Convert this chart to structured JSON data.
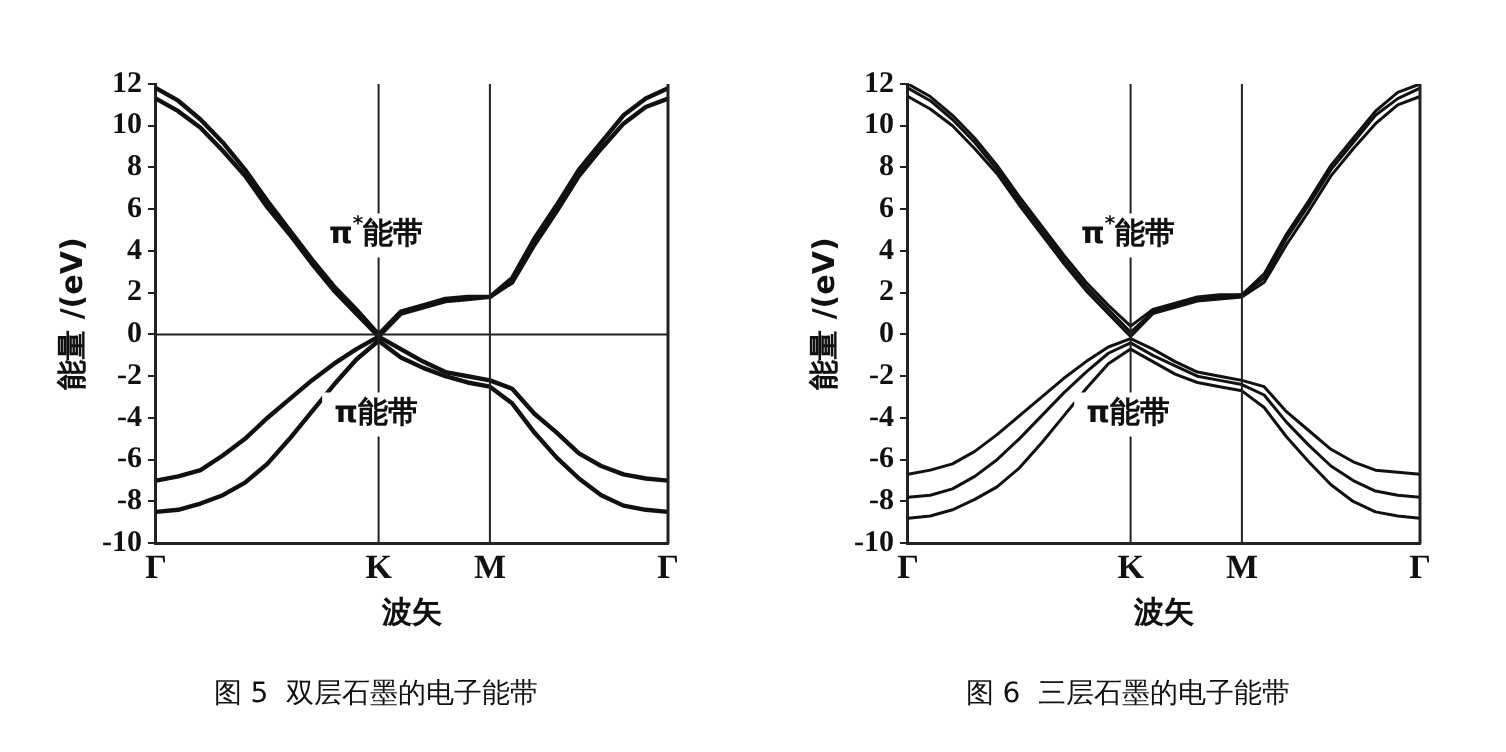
{
  "chart_data": [
    {
      "type": "line",
      "title": "图 5  双层石墨的电子能带",
      "xlabel": "波矢",
      "ylabel": "能量 /(eV)",
      "categories": [
        "Γ",
        null,
        null,
        null,
        null,
        null,
        null,
        null,
        null,
        null,
        "K",
        null,
        null,
        null,
        null,
        "M",
        null,
        null,
        null,
        null,
        null,
        null,
        null,
        "Γ"
      ],
      "series": [
        {
          "color": "#111111",
          "values": [
            11.8,
            11.2,
            10.3,
            9.2,
            7.9,
            6.4,
            5.0,
            3.6,
            2.3,
            1.2,
            0,
            1.1,
            1.4,
            1.7,
            1.8,
            1.8,
            2.7,
            4.6,
            6.2,
            7.9,
            9.2,
            10.5,
            11.3,
            11.8
          ]
        },
        {
          "color": "#111111",
          "values": [
            11.3,
            10.7,
            9.9,
            8.8,
            7.6,
            6.1,
            4.8,
            3.4,
            2.1,
            1.0,
            -0.1,
            1.0,
            1.3,
            1.6,
            1.7,
            1.8,
            2.5,
            4.3,
            5.9,
            7.6,
            8.9,
            10.1,
            10.9,
            11.3
          ]
        },
        {
          "color": "#111111",
          "values": [
            -7.0,
            -6.8,
            -6.5,
            -5.8,
            -5.0,
            -4.0,
            -3.1,
            -2.2,
            -1.4,
            -0.7,
            -0.1,
            -0.7,
            -1.3,
            -1.8,
            -2.0,
            -2.2,
            -2.6,
            -3.8,
            -4.7,
            -5.7,
            -6.3,
            -6.7,
            -6.9,
            -7.0
          ]
        },
        {
          "color": "#111111",
          "values": [
            -8.5,
            -8.4,
            -8.1,
            -7.7,
            -7.1,
            -6.2,
            -5.0,
            -3.7,
            -2.4,
            -1.2,
            -0.3,
            -1.1,
            -1.6,
            -2.0,
            -2.3,
            -2.5,
            -3.3,
            -4.7,
            -5.9,
            -6.9,
            -7.7,
            -8.2,
            -8.4,
            -8.5
          ]
        }
      ],
      "ylim": [
        -10,
        12
      ],
      "yticks": [
        -10,
        -8,
        -6,
        -4,
        -2,
        0,
        2,
        4,
        6,
        8,
        10,
        12
      ],
      "ref_lines": [
        {
          "axis": "x",
          "value": "K"
        },
        {
          "axis": "x",
          "value": "M"
        },
        {
          "axis": "y",
          "value": 0
        }
      ],
      "annotations": [
        "π$^{*}$能带",
        "π能带"
      ]
    },
    {
      "type": "line",
      "title": "图 6  三层石墨的电子能带",
      "xlabel": "波矢",
      "ylabel": "能量 /(eV)",
      "categories": [
        "Γ",
        null,
        null,
        null,
        null,
        null,
        null,
        null,
        null,
        null,
        "K",
        null,
        null,
        null,
        null,
        "M",
        null,
        null,
        null,
        null,
        null,
        null,
        null,
        "Γ"
      ],
      "series": [
        {
          "color": "#111111",
          "values": [
            12.0,
            11.4,
            10.5,
            9.4,
            8.1,
            6.6,
            5.2,
            3.8,
            2.5,
            1.4,
            0.4,
            1.2,
            1.5,
            1.8,
            1.9,
            1.9,
            2.9,
            4.8,
            6.4,
            8.1,
            9.4,
            10.7,
            11.6,
            12.0
          ]
        },
        {
          "color": "#111111",
          "values": [
            11.8,
            11.2,
            10.3,
            9.2,
            7.9,
            6.4,
            5.0,
            3.6,
            2.3,
            1.2,
            0.1,
            1.1,
            1.4,
            1.7,
            1.8,
            1.9,
            2.7,
            4.6,
            6.2,
            7.9,
            9.2,
            10.5,
            11.3,
            11.8
          ]
        },
        {
          "color": "#111111",
          "values": [
            11.4,
            10.8,
            10.0,
            8.9,
            7.7,
            6.2,
            4.8,
            3.4,
            2.1,
            1.0,
            -0.1,
            1.0,
            1.3,
            1.6,
            1.7,
            1.8,
            2.5,
            4.3,
            5.9,
            7.6,
            8.9,
            10.1,
            11.0,
            11.4
          ]
        },
        {
          "color": "#111111",
          "values": [
            -6.7,
            -6.5,
            -6.2,
            -5.6,
            -4.8,
            -3.9,
            -3.0,
            -2.1,
            -1.3,
            -0.6,
            -0.2,
            -0.7,
            -1.3,
            -1.8,
            -2.0,
            -2.2,
            -2.5,
            -3.7,
            -4.6,
            -5.5,
            -6.1,
            -6.5,
            -6.6,
            -6.7
          ]
        },
        {
          "color": "#111111",
          "values": [
            -7.8,
            -7.7,
            -7.4,
            -6.8,
            -6.0,
            -5.0,
            -3.9,
            -2.8,
            -1.8,
            -0.9,
            -0.4,
            -1.0,
            -1.5,
            -2.0,
            -2.2,
            -2.4,
            -2.9,
            -4.2,
            -5.3,
            -6.3,
            -7.0,
            -7.5,
            -7.7,
            -7.8
          ]
        },
        {
          "color": "#111111",
          "values": [
            -8.8,
            -8.7,
            -8.4,
            -7.9,
            -7.3,
            -6.4,
            -5.2,
            -3.9,
            -2.6,
            -1.4,
            -0.7,
            -1.3,
            -1.9,
            -2.3,
            -2.5,
            -2.7,
            -3.5,
            -4.9,
            -6.1,
            -7.2,
            -8.0,
            -8.5,
            -8.7,
            -8.8
          ]
        }
      ],
      "ylim": [
        -10,
        12
      ],
      "yticks": [
        -10,
        -8,
        -6,
        -4,
        -2,
        0,
        2,
        4,
        6,
        8,
        10,
        12
      ],
      "ref_lines": [
        {
          "axis": "x",
          "value": "K"
        },
        {
          "axis": "x",
          "value": "M"
        }
      ],
      "annotations": [
        "π$^{*}$能带",
        "π能带"
      ]
    }
  ]
}
